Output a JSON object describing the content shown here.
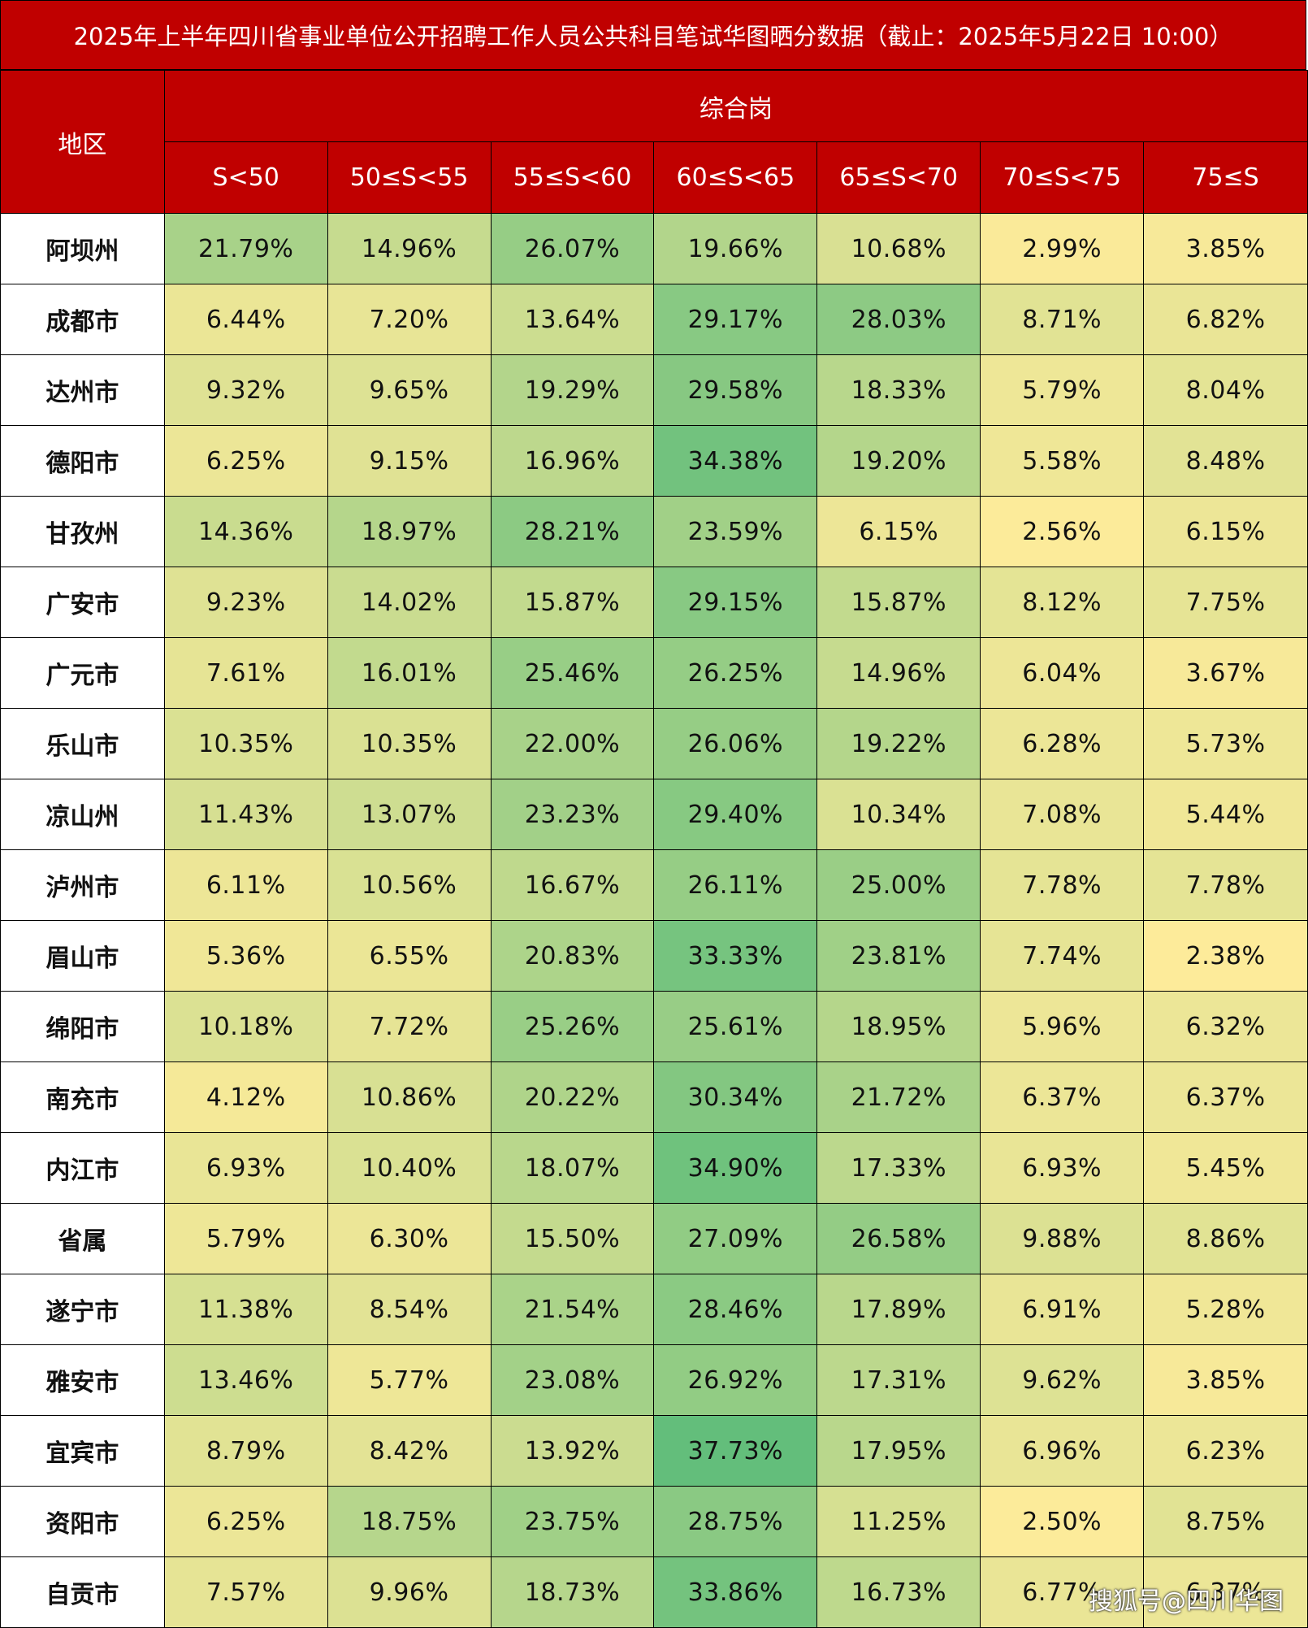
{
  "title": "2025年上半年四川省事业单位公开招聘工作人员公共科目笔试华图晒分数据（截止：2025年5月22日  10:00）",
  "colors": {
    "header_bg": "#c00000",
    "low": "#fdeb9a",
    "high": "#63be7b"
  },
  "chart_data": {
    "type": "heatmap",
    "title": "2025年上半年四川省事业单位公开招聘工作人员公共科目笔试华图晒分数据（截止：2025年5月22日  10:00）",
    "row_header": "地区",
    "group_header": "综合岗",
    "columns": [
      "S<50",
      "50≤S<55",
      "55≤S<60",
      "60≤S<65",
      "65≤S<70",
      "70≤S<75",
      "75≤S"
    ],
    "rows": [
      {
        "region": "阿坝州",
        "values": [
          "21.79%",
          "14.96%",
          "26.07%",
          "19.66%",
          "10.68%",
          "2.99%",
          "3.85%"
        ]
      },
      {
        "region": "成都市",
        "values": [
          "6.44%",
          "7.20%",
          "13.64%",
          "29.17%",
          "28.03%",
          "8.71%",
          "6.82%"
        ]
      },
      {
        "region": "达州市",
        "values": [
          "9.32%",
          "9.65%",
          "19.29%",
          "29.58%",
          "18.33%",
          "5.79%",
          "8.04%"
        ]
      },
      {
        "region": "德阳市",
        "values": [
          "6.25%",
          "9.15%",
          "16.96%",
          "34.38%",
          "19.20%",
          "5.58%",
          "8.48%"
        ]
      },
      {
        "region": "甘孜州",
        "values": [
          "14.36%",
          "18.97%",
          "28.21%",
          "23.59%",
          "6.15%",
          "2.56%",
          "6.15%"
        ]
      },
      {
        "region": "广安市",
        "values": [
          "9.23%",
          "14.02%",
          "15.87%",
          "29.15%",
          "15.87%",
          "8.12%",
          "7.75%"
        ]
      },
      {
        "region": "广元市",
        "values": [
          "7.61%",
          "16.01%",
          "25.46%",
          "26.25%",
          "14.96%",
          "6.04%",
          "3.67%"
        ]
      },
      {
        "region": "乐山市",
        "values": [
          "10.35%",
          "10.35%",
          "22.00%",
          "26.06%",
          "19.22%",
          "6.28%",
          "5.73%"
        ]
      },
      {
        "region": "凉山州",
        "values": [
          "11.43%",
          "13.07%",
          "23.23%",
          "29.40%",
          "10.34%",
          "7.08%",
          "5.44%"
        ]
      },
      {
        "region": "泸州市",
        "values": [
          "6.11%",
          "10.56%",
          "16.67%",
          "26.11%",
          "25.00%",
          "7.78%",
          "7.78%"
        ]
      },
      {
        "region": "眉山市",
        "values": [
          "5.36%",
          "6.55%",
          "20.83%",
          "33.33%",
          "23.81%",
          "7.74%",
          "2.38%"
        ]
      },
      {
        "region": "绵阳市",
        "values": [
          "10.18%",
          "7.72%",
          "25.26%",
          "25.61%",
          "18.95%",
          "5.96%",
          "6.32%"
        ]
      },
      {
        "region": "南充市",
        "values": [
          "4.12%",
          "10.86%",
          "20.22%",
          "30.34%",
          "21.72%",
          "6.37%",
          "6.37%"
        ]
      },
      {
        "region": "内江市",
        "values": [
          "6.93%",
          "10.40%",
          "18.07%",
          "34.90%",
          "17.33%",
          "6.93%",
          "5.45%"
        ]
      },
      {
        "region": "省属",
        "values": [
          "5.79%",
          "6.30%",
          "15.50%",
          "27.09%",
          "26.58%",
          "9.88%",
          "8.86%"
        ]
      },
      {
        "region": "遂宁市",
        "values": [
          "11.38%",
          "8.54%",
          "21.54%",
          "28.46%",
          "17.89%",
          "6.91%",
          "5.28%"
        ]
      },
      {
        "region": "雅安市",
        "values": [
          "13.46%",
          "5.77%",
          "23.08%",
          "26.92%",
          "17.31%",
          "9.62%",
          "3.85%"
        ]
      },
      {
        "region": "宜宾市",
        "values": [
          "8.79%",
          "8.42%",
          "13.92%",
          "37.73%",
          "17.95%",
          "6.96%",
          "6.23%"
        ]
      },
      {
        "region": "资阳市",
        "values": [
          "6.25%",
          "18.75%",
          "23.75%",
          "28.75%",
          "11.25%",
          "2.50%",
          "8.75%"
        ]
      },
      {
        "region": "自贡市",
        "values": [
          "7.57%",
          "9.96%",
          "18.73%",
          "33.86%",
          "16.73%",
          "6.77%",
          "6.37%"
        ]
      }
    ]
  },
  "watermark": "搜狐号@四川华图"
}
